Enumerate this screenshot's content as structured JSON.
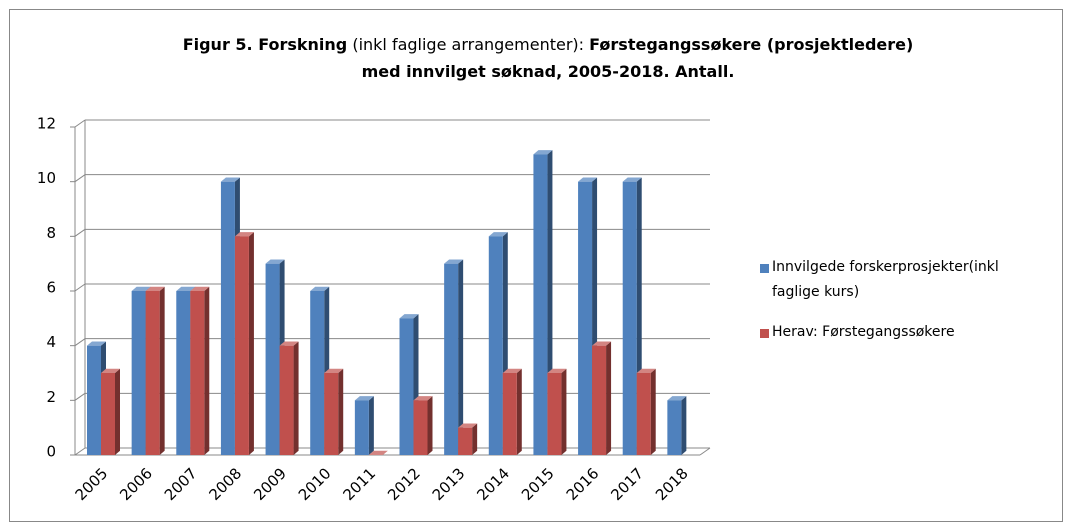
{
  "chart_data": {
    "type": "bar3d",
    "title": [
      [
        {
          "text": "Figur 5. Forskning",
          "bold": true
        },
        {
          "text": " (inkl faglige arrangementer): ",
          "bold": false
        },
        {
          "text": "Førstegangssøkere (prosjektledere)",
          "bold": true
        }
      ],
      [
        {
          "text": "med innvilget søknad, 2005-2018. Antall.",
          "bold": true
        }
      ]
    ],
    "categories": [
      "2005",
      "2006",
      "2007",
      "2008",
      "2009",
      "2010",
      "2011",
      "2012",
      "2013",
      "2014",
      "2015",
      "2016",
      "2017",
      "2018"
    ],
    "series": [
      {
        "name": "Innvilgede forskerprosjekter(inkl faglige kurs)",
        "color": "#4f81bd",
        "values": [
          4,
          6,
          6,
          10,
          7,
          6,
          2,
          5,
          7,
          8,
          11,
          10,
          10,
          2
        ]
      },
      {
        "name": "Herav: Førstegangssøkere",
        "color": "#c0504d",
        "values": [
          3,
          6,
          6,
          8,
          4,
          3,
          0,
          2,
          1,
          3,
          3,
          4,
          3,
          null
        ]
      }
    ],
    "ylim": [
      0,
      12
    ],
    "yticks": [
      0,
      2,
      4,
      6,
      8,
      10,
      12
    ],
    "grid": true,
    "legend": "right"
  }
}
